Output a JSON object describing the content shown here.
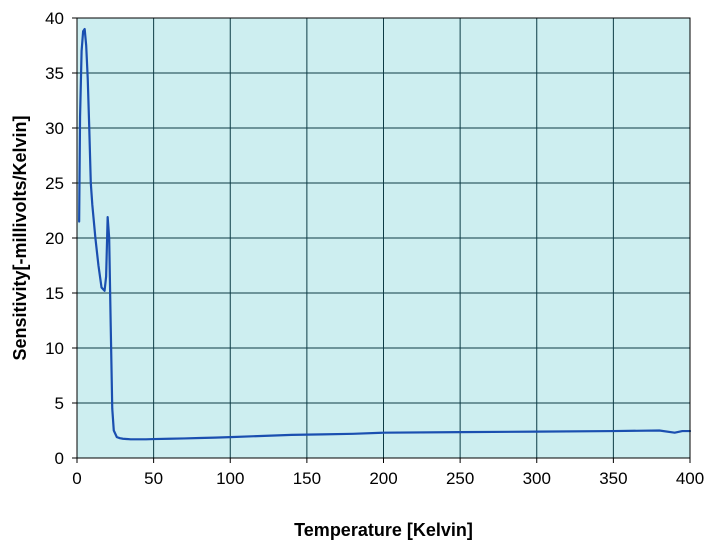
{
  "chart_data": {
    "type": "line",
    "title": "",
    "xlabel": "Temperature [Kelvin]",
    "ylabel": "Sensitivity[-millivolts/Kelvin]",
    "xlim": [
      0,
      400
    ],
    "ylim": [
      0,
      40
    ],
    "x_ticks": [
      0,
      50,
      100,
      150,
      200,
      250,
      300,
      350,
      400
    ],
    "y_ticks": [
      0,
      5,
      10,
      15,
      20,
      25,
      30,
      35,
      40
    ],
    "grid": true,
    "legend": "none",
    "colors": {
      "plot_background": "#cdeef0",
      "grid": "#0d3b45",
      "line": "#1a4fb0",
      "frame": "#000000"
    },
    "series": [
      {
        "x": [
          1.4,
          2,
          3,
          4,
          5,
          6,
          7,
          8,
          9,
          10,
          12,
          14,
          16,
          18,
          19,
          20,
          21,
          22,
          23,
          24,
          26,
          28,
          30,
          35,
          40,
          45,
          50,
          60,
          70,
          80,
          90,
          100,
          120,
          140,
          160,
          180,
          200,
          250,
          300,
          350,
          380,
          390,
          395,
          400
        ],
        "y": [
          21.5,
          31,
          37,
          38.8,
          39,
          37.5,
          34.5,
          30,
          25,
          23,
          20,
          17.5,
          15.5,
          15.2,
          16.5,
          21.9,
          20,
          12,
          4.5,
          2.5,
          1.9,
          1.8,
          1.75,
          1.7,
          1.7,
          1.7,
          1.72,
          1.75,
          1.78,
          1.82,
          1.85,
          1.9,
          2.0,
          2.1,
          2.15,
          2.2,
          2.3,
          2.35,
          2.4,
          2.45,
          2.5,
          2.3,
          2.45,
          2.45
        ]
      }
    ]
  }
}
